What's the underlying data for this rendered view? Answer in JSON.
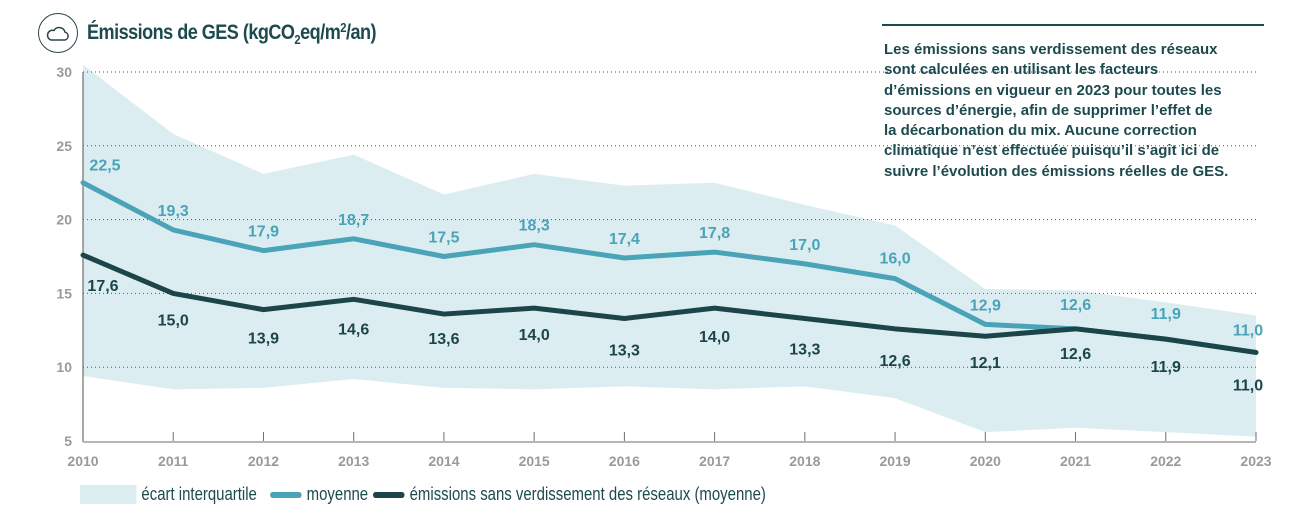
{
  "header": {
    "icon": "cloud-icon",
    "title_main": "Émissions de GES (kgCO",
    "title_sub": "2",
    "title_mid": "eq/m",
    "title_sup": "2",
    "title_end": "/an)"
  },
  "note": {
    "text": "Les émissions sans verdissement des réseaux\nsont calculées en utilisant les facteurs\nd’émissions en vigueur en 2023 pour toutes les\nsources d’énergie, afin de supprimer l’effet de\nla décarbonation du mix. Aucune correction\nclimatique n’est effectuée puisqu’il s’agit ici de\nsuivre l’évolution des émissions réelles de GES."
  },
  "colors": {
    "band": "#dcedf2",
    "mean": "#4aa3b7",
    "dark": "#1c454a",
    "axis": "#9a9a9a",
    "grid": "#555555"
  },
  "chart_data": {
    "type": "line",
    "title": "Émissions de GES (kgCO2eq/m²/an)",
    "xlabel": "",
    "ylabel": "",
    "x": [
      "2010",
      "2011",
      "2012",
      "2013",
      "2014",
      "2015",
      "2016",
      "2017",
      "2018",
      "2019",
      "2020",
      "2021",
      "2022",
      "2023"
    ],
    "ylim": [
      5,
      30
    ],
    "yticks": [
      "5",
      "10",
      "15",
      "20",
      "25",
      "30"
    ],
    "grid": "horizontal dotted",
    "legend_position": "bottom",
    "band": {
      "name": "écart interquartile",
      "upper": [
        30.5,
        25.8,
        23.1,
        24.4,
        21.7,
        23.1,
        22.3,
        22.5,
        21.0,
        19.6,
        15.3,
        15.2,
        14.4,
        13.5
      ],
      "lower": [
        9.4,
        8.5,
        8.6,
        9.2,
        8.6,
        8.5,
        8.7,
        8.5,
        8.7,
        7.9,
        5.6,
        5.9,
        5.6,
        5.3
      ]
    },
    "series": [
      {
        "name": "moyenne",
        "values": [
          22.5,
          19.3,
          17.9,
          18.7,
          17.5,
          18.3,
          17.4,
          17.8,
          17.0,
          16.0,
          12.9,
          12.6,
          11.9,
          11.0
        ],
        "labels": [
          "22,5",
          "19,3",
          "17,9",
          "18,7",
          "17,5",
          "18,3",
          "17,4",
          "17,8",
          "17,0",
          "16,0",
          "12,9",
          "12,6",
          "11,9",
          "11,0"
        ]
      },
      {
        "name": "émissions sans verdissement des réseaux (moyenne)",
        "values": [
          17.6,
          15.0,
          13.9,
          14.6,
          13.6,
          14.0,
          13.3,
          14.0,
          13.3,
          12.6,
          12.1,
          12.6,
          11.9,
          11.0
        ],
        "labels": [
          "17,6",
          "15,0",
          "13,9",
          "14,6",
          "13,6",
          "14,0",
          "13,3",
          "14,0",
          "13,3",
          "12,6",
          "12,1",
          "12,6",
          "11,9",
          "11,0"
        ]
      }
    ]
  }
}
